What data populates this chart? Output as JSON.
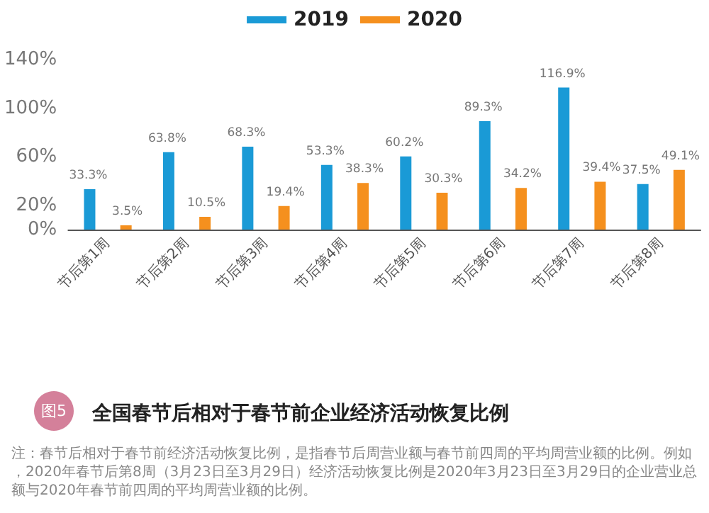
{
  "chart_data": {
    "type": "bar",
    "title": "全国春节后相对于春节前企业经济活动恢复比例",
    "categories": [
      "节后第1周",
      "节后第2周",
      "节后第3周",
      "节后第4周",
      "节后第5周",
      "节后第6周",
      "节后第7周",
      "节后第8周"
    ],
    "series": [
      {
        "name": "2019",
        "color": "#1a9ad6",
        "values": [
          33.3,
          63.8,
          68.3,
          53.3,
          60.2,
          89.3,
          116.9,
          37.5
        ],
        "value_labels": [
          "33.3%",
          "63.8%",
          "68.3%",
          "53.3%",
          "60.2%",
          "89.3%",
          "116.9%",
          "37.5%"
        ]
      },
      {
        "name": "2020",
        "color": "#f5901e",
        "values": [
          3.5,
          10.5,
          19.4,
          38.3,
          30.3,
          34.2,
          39.4,
          49.1
        ],
        "value_labels": [
          "3.5%",
          "10.5%",
          "19.4%",
          "38.3%",
          "30.3%",
          "34.2%",
          "39.4%",
          "49.1%"
        ]
      }
    ],
    "ylim": [
      0,
      140
    ],
    "yticks": [
      {
        "value": 0,
        "label": "0%"
      },
      {
        "value": 20,
        "label": "20%"
      },
      {
        "value": 60,
        "label": "60%"
      },
      {
        "value": 100,
        "label": "100%"
      },
      {
        "value": 140,
        "label": "140%"
      }
    ],
    "grid": false,
    "legend": "top",
    "annotations": [
      "图5",
      "注：春节后相对于春节前经济活动恢复比例，是指春节后周营业额与春节前四周的平均周营业额的比例。例如，2020年春节后第8周（3月23日至3月29日）经济活动恢复比例是2020年3月23日至3月29日的企业营业总额与2020年春节前四周的平均周营业额的比例。"
    ]
  }
}
